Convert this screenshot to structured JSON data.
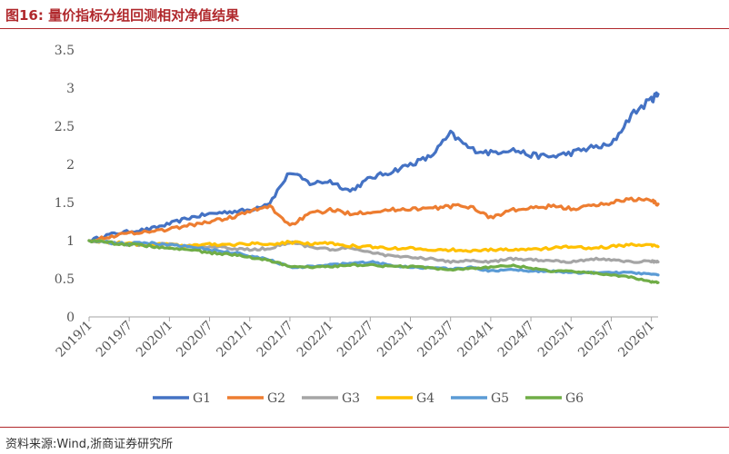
{
  "header": {
    "title": "图16:  量价指标分组回测相对净值结果"
  },
  "footer": {
    "source": "资料来源:Wind,浙商证券研究所"
  },
  "colors": {
    "accent": "#b0282c",
    "G1": "#4472C4",
    "G2": "#ED7D31",
    "G3": "#A5A5A5",
    "G4": "#FFC000",
    "G5": "#5B9BD5",
    "G6": "#70AD47"
  },
  "chart_data": {
    "type": "line",
    "title": "",
    "xlabel": "",
    "ylabel": "",
    "ylim": [
      0,
      3.5
    ],
    "yticks": [
      "0",
      "0.5",
      "1",
      "1.5",
      "2",
      "2.5",
      "3",
      "3.5"
    ],
    "xticks": [
      "2019/1",
      "2019/7",
      "2020/1",
      "2020/7",
      "2021/1",
      "2021/7",
      "2022/1",
      "2022/7",
      "2023/1",
      "2023/7",
      "2024/1",
      "2024/7",
      "2025/1",
      "2025/7",
      "2026/1"
    ],
    "x": [
      "2019/1",
      "2019/4",
      "2019/7",
      "2019/10",
      "2020/1",
      "2020/4",
      "2020/7",
      "2020/10",
      "2021/1",
      "2021/4",
      "2021/7",
      "2021/10",
      "2022/1",
      "2022/4",
      "2022/7",
      "2022/10",
      "2023/1",
      "2023/4",
      "2023/7",
      "2023/10",
      "2024/1",
      "2024/4",
      "2024/7",
      "2024/10",
      "2025/1",
      "2025/4",
      "2025/7",
      "2025/10",
      "2026/1",
      "2026/2"
    ],
    "series": [
      {
        "name": "G1",
        "values": [
          1.0,
          1.08,
          1.12,
          1.15,
          1.22,
          1.3,
          1.35,
          1.38,
          1.4,
          1.5,
          1.9,
          1.75,
          1.78,
          1.65,
          1.82,
          1.9,
          2.0,
          2.1,
          2.4,
          2.2,
          2.15,
          2.2,
          2.12,
          2.1,
          2.15,
          2.22,
          2.25,
          2.65,
          2.85,
          2.92
        ]
      },
      {
        "name": "G2",
        "values": [
          1.0,
          1.05,
          1.1,
          1.12,
          1.15,
          1.2,
          1.25,
          1.3,
          1.38,
          1.45,
          1.2,
          1.35,
          1.4,
          1.36,
          1.38,
          1.4,
          1.42,
          1.42,
          1.45,
          1.45,
          1.3,
          1.4,
          1.42,
          1.45,
          1.42,
          1.45,
          1.5,
          1.55,
          1.52,
          1.48
        ]
      },
      {
        "name": "G3",
        "values": [
          1.0,
          0.98,
          0.95,
          0.95,
          0.95,
          0.93,
          0.92,
          0.9,
          0.88,
          0.9,
          0.98,
          0.92,
          0.88,
          0.9,
          0.85,
          0.8,
          0.78,
          0.76,
          0.72,
          0.74,
          0.72,
          0.76,
          0.75,
          0.74,
          0.72,
          0.76,
          0.75,
          0.72,
          0.73,
          0.72
        ]
      },
      {
        "name": "G4",
        "values": [
          1.0,
          0.98,
          0.96,
          0.95,
          0.95,
          0.93,
          0.95,
          0.95,
          0.96,
          0.95,
          0.98,
          0.96,
          0.97,
          0.93,
          0.92,
          0.9,
          0.9,
          0.88,
          0.88,
          0.87,
          0.88,
          0.88,
          0.88,
          0.9,
          0.92,
          0.9,
          0.92,
          0.95,
          0.94,
          0.92
        ]
      },
      {
        "name": "G5",
        "values": [
          1.0,
          0.97,
          0.96,
          0.97,
          0.95,
          0.92,
          0.88,
          0.85,
          0.8,
          0.75,
          0.65,
          0.66,
          0.68,
          0.7,
          0.72,
          0.68,
          0.65,
          0.64,
          0.63,
          0.65,
          0.6,
          0.62,
          0.6,
          0.6,
          0.58,
          0.58,
          0.58,
          0.58,
          0.56,
          0.55
        ]
      },
      {
        "name": "G6",
        "values": [
          1.0,
          0.97,
          0.95,
          0.93,
          0.9,
          0.88,
          0.84,
          0.82,
          0.78,
          0.74,
          0.66,
          0.65,
          0.66,
          0.68,
          0.68,
          0.66,
          0.66,
          0.64,
          0.62,
          0.64,
          0.65,
          0.68,
          0.64,
          0.6,
          0.6,
          0.58,
          0.55,
          0.52,
          0.46,
          0.45
        ]
      }
    ],
    "legend_position": "bottom"
  }
}
